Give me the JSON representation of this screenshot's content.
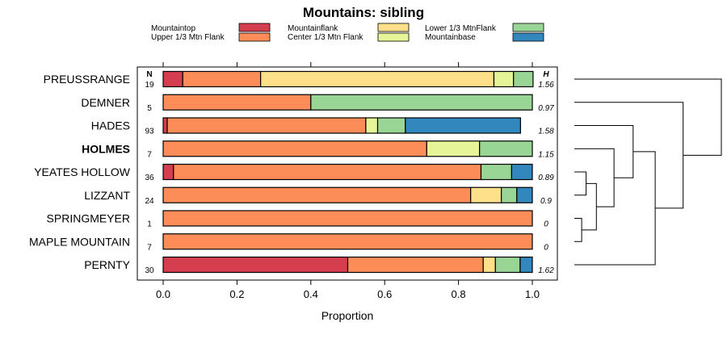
{
  "chart_data": {
    "type": "bar",
    "stacked": true,
    "orientation": "horizontal",
    "title": "Mountains: sibling",
    "xlabel": "Proportion",
    "ylabel": "",
    "xlim": [
      0,
      1
    ],
    "xticks": [
      "0.0",
      "0.2",
      "0.4",
      "0.6",
      "0.8",
      "1.0"
    ],
    "xtick_values": [
      0,
      0.2,
      0.4,
      0.6,
      0.8,
      1.0
    ],
    "n_header": "N",
    "h_header": "H",
    "legend": [
      {
        "name": "Mountaintop",
        "color": "#D53E4F"
      },
      {
        "name": "Upper 1/3 Mtn Flank",
        "color": "#FC8D59"
      },
      {
        "name": "Mountainflank",
        "color": "#FEE08B"
      },
      {
        "name": "Center 1/3 Mtn Flank",
        "color": "#E6F598"
      },
      {
        "name": "Lower 1/3 MtnFlank",
        "color": "#99D594"
      },
      {
        "name": "Mountainbase",
        "color": "#3288BD"
      }
    ],
    "categories": [
      "PREUSSRANGE",
      "DEMNER",
      "HADES",
      "HOLMES",
      "YEATES HOLLOW",
      "LIZZANT",
      "SPRINGMEYER",
      "MAPLE MOUNTAIN",
      "PERNTY"
    ],
    "bold_category": "HOLMES",
    "n": [
      "19",
      "5",
      "93",
      "7",
      "36",
      "24",
      "1",
      "7",
      "30"
    ],
    "h": [
      "1.56",
      "0.97",
      "1.58",
      "1.15",
      "0.89",
      "0.9",
      "0",
      "0",
      "1.62"
    ],
    "series": [
      {
        "name": "Mountaintop",
        "values": [
          0.053,
          0,
          0.011,
          0,
          0.028,
          0,
          0,
          0,
          0.5
        ]
      },
      {
        "name": "Upper 1/3 Mtn Flank",
        "values": [
          0.211,
          0.4,
          0.538,
          0.714,
          0.833,
          0.833,
          1.0,
          1.0,
          0.367
        ]
      },
      {
        "name": "Mountainflank",
        "values": [
          0.632,
          0,
          0,
          0,
          0,
          0.083,
          0,
          0,
          0.033
        ]
      },
      {
        "name": "Center 1/3 Mtn Flank",
        "values": [
          0.053,
          0,
          0.032,
          0.143,
          0,
          0,
          0,
          0,
          0
        ]
      },
      {
        "name": "Lower 1/3 MtnFlank",
        "values": [
          0.053,
          0.6,
          0.075,
          0.143,
          0.083,
          0.042,
          0,
          0,
          0.067
        ]
      },
      {
        "name": "Mountainbase",
        "values": [
          0,
          0,
          0.312,
          0,
          0.056,
          0.042,
          0,
          0,
          0.033
        ]
      }
    ],
    "dendrogram": {
      "merges": [
        {
          "id": "m1",
          "left": "SPRINGMEYER",
          "right": "MAPLE MOUNTAIN",
          "height": 0.05
        },
        {
          "id": "m2",
          "left": "YEATES HOLLOW",
          "right": "LIZZANT",
          "height": 0.08
        },
        {
          "id": "m3",
          "left": "m2",
          "right": "m1",
          "height": 0.15
        },
        {
          "id": "m4",
          "left": "HOLMES",
          "right": "m3",
          "height": 0.27
        },
        {
          "id": "m5",
          "left": "HADES",
          "right": "m4",
          "height": 0.4
        },
        {
          "id": "m6",
          "left": "m5",
          "right": "PERNTY",
          "height": 0.55
        },
        {
          "id": "m7",
          "left": "DEMNER",
          "right": "m6",
          "height": 0.74
        },
        {
          "id": "m8",
          "left": "PREUSSRANGE",
          "right": "m7",
          "height": 1.0
        }
      ]
    }
  }
}
